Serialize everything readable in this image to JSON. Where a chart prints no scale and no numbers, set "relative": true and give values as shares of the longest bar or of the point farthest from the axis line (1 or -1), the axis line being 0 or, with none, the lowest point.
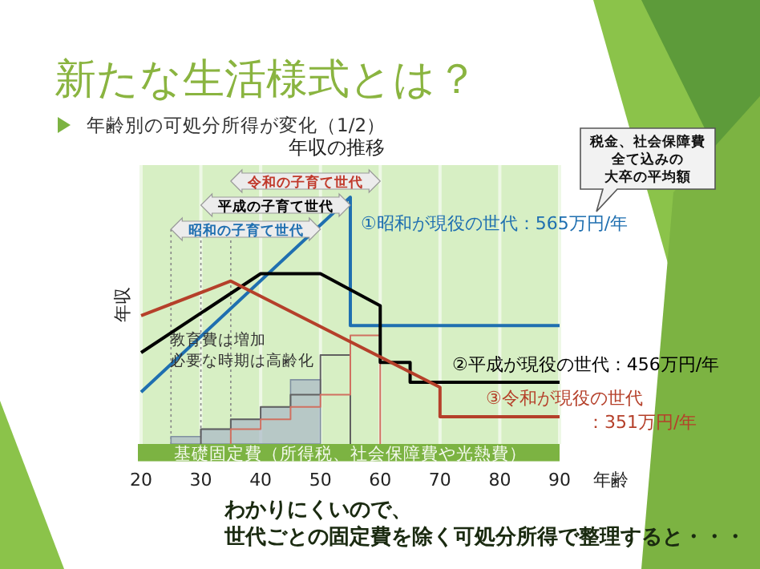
{
  "chart_data": {
    "type": "line",
    "title": "年収の推移",
    "xlabel": "年齢",
    "ylabel": "年収",
    "relative": true,
    "xlim": [
      20,
      90
    ],
    "xticks": [
      20,
      30,
      40,
      50,
      60,
      70,
      80,
      90
    ],
    "grid": "x",
    "legend": false,
    "series": [
      {
        "type": "area",
        "color": "#a9b8c8",
        "x": [
          25,
          25,
          30,
          30,
          35,
          35,
          40,
          40,
          45,
          45,
          50,
          50
        ],
        "values": [
          0,
          0.03,
          0.03,
          0.06,
          0.06,
          0.1,
          0.1,
          0.15,
          0.15,
          0.26,
          0.26,
          0
        ]
      },
      {
        "color": "#606060",
        "x": [
          30,
          30,
          35,
          35,
          40,
          40,
          45,
          45,
          50,
          50,
          55,
          55
        ],
        "values": [
          0,
          0.06,
          0.06,
          0.1,
          0.1,
          0.15,
          0.15,
          0.2,
          0.2,
          0.36,
          0.36,
          0
        ]
      },
      {
        "color": "#d07060",
        "x": [
          35,
          35,
          40,
          40,
          45,
          45,
          50,
          50,
          55,
          55,
          60,
          60
        ],
        "values": [
          0,
          0.06,
          0.06,
          0.1,
          0.1,
          0.15,
          0.15,
          0.2,
          0.2,
          0.44,
          0.44,
          0
        ]
      },
      {
        "name": "①昭和が現役の世代：565万円/年",
        "color": "#1f6fb0",
        "x": [
          20,
          55,
          55,
          90
        ],
        "values": [
          0.21,
          1,
          0.48,
          0.48
        ]
      },
      {
        "name": "②平成が現役の世代：456万円/年",
        "color": "#000000",
        "x": [
          20,
          40,
          50,
          60,
          60,
          65,
          65,
          90
        ],
        "values": [
          0.37,
          0.69,
          0.69,
          0.56,
          0.33,
          0.33,
          0.25,
          0.25
        ]
      },
      {
        "name": "③令和が現役の世代：351万円/年",
        "color": "#b5402a",
        "x": [
          20,
          35,
          70,
          70,
          90
        ],
        "values": [
          0.52,
          0.66,
          0.23,
          0.11,
          0.11
        ]
      }
    ],
    "ref_lines": [
      {
        "axis": "x",
        "value": 25,
        "line_style": "dotted"
      },
      {
        "axis": "x",
        "value": 30,
        "line_style": "dotted"
      },
      {
        "axis": "x",
        "value": 35,
        "line_style": "dotted"
      }
    ],
    "bands": [
      {
        "axis": "y",
        "from": -0.07,
        "to": 0,
        "label": "基礎固定費（所得税、社会保障費や光熱費）",
        "color": "#7cb342"
      }
    ],
    "annotations": [
      "新たな生活様式とは？",
      "年齢別の可処分所得が変化（1/2）",
      "税金、社会保障費",
      "全て込みの",
      "大卒の平均額",
      "教育費は増加",
      "必要な時期は高齢化",
      "わかりにくいので、",
      "世代ごとの固定費を除く可処分所得で整理すると・・・",
      "令和の子育て世代",
      "平成の子育て世代",
      "昭和の子育て世代"
    ]
  }
}
